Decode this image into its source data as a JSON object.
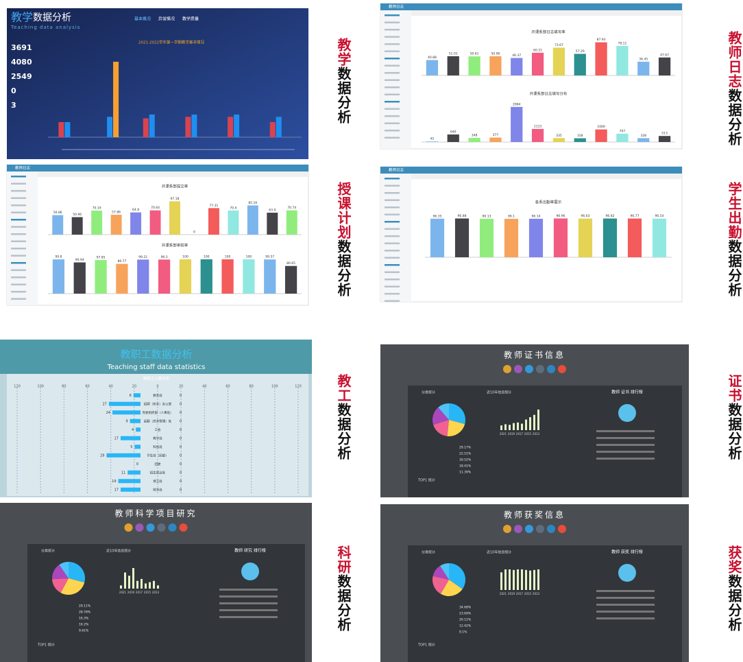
{
  "side_labels": [
    {
      "a": "教学",
      "b": "数据分析"
    },
    {
      "a": "教师日志",
      "b": "数据分析"
    },
    {
      "a": "授课计划",
      "b": "数据分析"
    },
    {
      "a": "学生出勤",
      "b": "数据分析"
    },
    {
      "a": "教工",
      "b": "数据分析"
    },
    {
      "a": "证书",
      "b": "数据分析"
    },
    {
      "a": "科研",
      "b": "数据分析"
    },
    {
      "a": "获奖",
      "b": "数据分析"
    }
  ],
  "palette": [
    "#7cb5ec",
    "#434348",
    "#90ed7d",
    "#f7a35c",
    "#8085e9",
    "#f15c80",
    "#e4d354",
    "#2b908f",
    "#f45b5b",
    "#91e8e1"
  ],
  "teaching": {
    "title_a": "教学",
    "title_b": "数据分析",
    "subtitle": "Teaching data analysis",
    "tabs": [
      "基本概况",
      "异常情况",
      "教学质量"
    ],
    "heading": "2021-2022学年第一学期教学基本情况",
    "stats": [
      3691,
      4080,
      2549,
      0,
      3
    ],
    "chart": {
      "ylim": [
        0,
        100
      ],
      "series": [
        {
          "color": "#d9434f",
          "values": [
            20,
            0,
            25,
            27,
            27,
            20
          ]
        },
        {
          "color": "#1f8ef1",
          "values": [
            20,
            27,
            30,
            30,
            30,
            27
          ]
        },
        {
          "color": "#f7a030",
          "values": [
            0,
            100,
            0,
            0,
            0,
            0
          ]
        }
      ]
    }
  },
  "teacher_log": {
    "header": "教师日志",
    "chart1": {
      "title": "开课系部日志填写率",
      "ylim": [
        0,
        100
      ],
      "values": [
        40.88,
        51.01,
        50.61,
        50.96,
        46.37,
        60.21,
        73.67,
        57.29,
        87.93,
        78.11,
        36.45,
        47.67
      ]
    },
    "chart2": {
      "title": "开课系部日志填写分布",
      "ylim": [
        0,
        3500
      ],
      "values": [
        45,
        640,
        348,
        377,
        2984,
        1113,
        335,
        318,
        1069,
        707,
        328,
        513
      ]
    }
  },
  "plan": {
    "header": "教师日志",
    "chart1": {
      "title": "开课系部提交率",
      "ylim": [
        0,
        120
      ],
      "values": [
        56.86,
        50.96,
        70.19,
        57.86,
        64.8,
        70.64,
        97.18,
        0,
        77.31,
        70.4,
        85.16,
        63.9,
        70.74
      ]
    },
    "chart2": {
      "title": "开课系部审核率",
      "ylim": [
        0,
        120
      ],
      "values": [
        99.8,
        90.94,
        97.85,
        86.77,
        99.21,
        99.3,
        100,
        100,
        100,
        100,
        99.57,
        80.65
      ]
    }
  },
  "attendance": {
    "header": "教师日志",
    "chart": {
      "title": "各系出勤率展示",
      "ylim": [
        0,
        120
      ],
      "values": [
        96.35,
        96.88,
        96.13,
        96.1,
        96.14,
        96.96,
        96.63,
        96.82,
        96.77,
        96.54
      ]
    }
  },
  "staff": {
    "title": "教职工数据分析",
    "subtitle": "Teaching staff data statistics",
    "chart_title": "教职工人数分布",
    "xlim": [
      -120,
      120
    ],
    "xticks": [
      {
        "value": -120,
        "label": "120"
      },
      {
        "value": -100,
        "label": "100"
      },
      {
        "value": -80,
        "label": "80"
      },
      {
        "value": -60,
        "label": "60"
      },
      {
        "value": -40,
        "label": "40"
      },
      {
        "value": -20,
        "label": "20"
      },
      0,
      20,
      40,
      60,
      80,
      100,
      120
    ],
    "categories": [
      "教务处",
      "招聘（校长）办公室",
      "党委组织部（人事处）",
      "后勤（总务管理）处",
      "工会",
      "教学处",
      "科技处",
      "学生处（团委）",
      "团委",
      "招生就业处",
      "保卫处",
      "财务处"
    ],
    "values": [
      6,
      27,
      24,
      9,
      4,
      17,
      5,
      29,
      0,
      11,
      19,
      17
    ],
    "right_values": [
      0,
      0,
      0,
      0,
      0,
      0,
      0,
      0,
      0,
      0,
      0,
      0
    ]
  },
  "cert": {
    "title": "教师证书信息",
    "sections": [
      "分类统计",
      "近10年信息统计"
    ],
    "rank_title": "教师 证书 排行榜",
    "top": "TOP1 统计",
    "pie": [
      29.17,
      22.51,
      18.52,
      18.41,
      11.39
    ],
    "pie_labels": [
      "29.17%",
      "22.51%",
      "18.52%",
      "18.41%",
      "11.39%"
    ],
    "bars": [
      8,
      10,
      9,
      12,
      13,
      11,
      18,
      22,
      26,
      35
    ],
    "years": [
      "2021",
      "2019",
      "2017",
      "2015",
      "2013"
    ]
  },
  "research": {
    "title": "教师科学项目研究",
    "sections": [
      "分类统计",
      "近10年信息统计"
    ],
    "rank_title": "教师 研究 排行榜",
    "top": "TOP1 统计",
    "pie": [
      29.11,
      28.78,
      16.3,
      16.2,
      9.61
    ],
    "pie_labels": [
      "29.11%",
      "28.78%",
      "16.3%",
      "16.2%",
      "9.61%"
    ],
    "bars": [
      5,
      25,
      20,
      32,
      12,
      15,
      8,
      10,
      12,
      5
    ],
    "years": [
      "2021",
      "2019",
      "2017",
      "2015",
      "2013"
    ]
  },
  "award": {
    "title": "教师获奖信息",
    "sections": [
      "分类统计",
      "近10年信息统计"
    ],
    "rank_title": "教师 获奖 排行榜",
    "top": "TOP1 统计",
    "pie": [
      34.68,
      23.69,
      20.11,
      12.42,
      9.1
    ],
    "pie_labels": [
      "34.68%",
      "23.69%",
      "20.11%",
      "12.42%",
      "9.1%"
    ],
    "bars": [
      30,
      35,
      35,
      34,
      35,
      35,
      34,
      33,
      34,
      35
    ],
    "years": [
      "2021",
      "2019",
      "2017",
      "2015",
      "2013"
    ]
  }
}
